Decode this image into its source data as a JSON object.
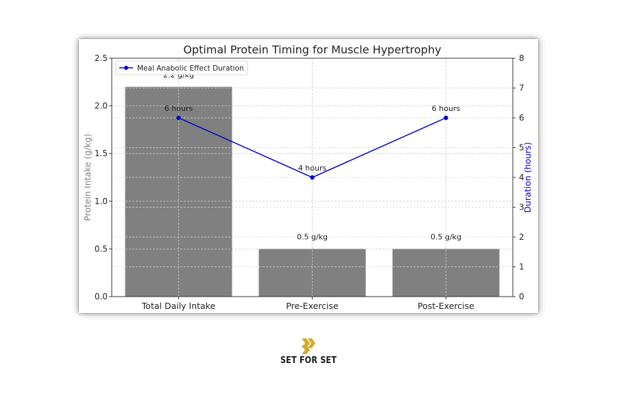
{
  "chart_data": {
    "type": "bar",
    "title": "Optimal Protein Timing for Muscle Hypertrophy",
    "categories": [
      "Total Daily Intake",
      "Pre-Exercise",
      "Post-Exercise"
    ],
    "ylabel": "Protein Intake (g/kg)",
    "ylabel_right": "Duration (hours)",
    "ylim": [
      0,
      2.5
    ],
    "ylim_right": [
      0,
      8
    ],
    "yticks": [
      "0.0",
      "0.5",
      "1.0",
      "1.5",
      "2.0",
      "2.5"
    ],
    "yticks_right": [
      "0",
      "1",
      "2",
      "3",
      "4",
      "5",
      "6",
      "7",
      "8"
    ],
    "grid": true,
    "legend_position": "top-left",
    "series": [
      {
        "kind": "bar",
        "values": [
          2.2,
          0.5,
          0.5
        ],
        "labels": [
          "2.2 g/kg",
          "0.5 g/kg",
          "0.5 g/kg"
        ],
        "color": "#808080"
      },
      {
        "kind": "line",
        "axis": "right",
        "name": "Meal Anabolic Effect Duration",
        "values": [
          6,
          4,
          6
        ],
        "labels": [
          "6 hours",
          "4 hours",
          "6 hours"
        ],
        "color": "#0000cc"
      }
    ]
  },
  "brand": {
    "name": "SET FOR SET",
    "logo_icon": "double-chevron-logo",
    "logo_color": "#d9a926"
  }
}
